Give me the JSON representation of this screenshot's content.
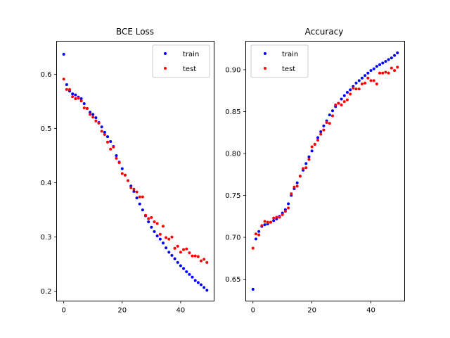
{
  "chart_data": [
    {
      "type": "scatter",
      "title": "BCE Loss",
      "xlabel": "",
      "ylabel": "",
      "xlim": [
        -2.45,
        51.45
      ],
      "ylim": [
        0.182,
        0.661
      ],
      "xticks": [
        0,
        20,
        40
      ],
      "xtick_labels": [
        "0",
        "20",
        "40"
      ],
      "yticks": [
        0.2,
        0.3,
        0.4,
        0.5,
        0.6
      ],
      "ytick_labels": [
        "0.2",
        "0.3",
        "0.4",
        "0.5",
        "0.6"
      ],
      "grid": false,
      "legend_position": "upper right",
      "x": [
        0,
        1,
        2,
        3,
        4,
        5,
        6,
        7,
        8,
        9,
        10,
        11,
        12,
        13,
        14,
        15,
        16,
        17,
        18,
        19,
        20,
        21,
        22,
        23,
        24,
        25,
        26,
        27,
        28,
        29,
        30,
        31,
        32,
        33,
        34,
        35,
        36,
        37,
        38,
        39,
        40,
        41,
        42,
        43,
        44,
        45,
        46,
        47,
        48,
        49
      ],
      "series": [
        {
          "name": "train",
          "color": "#0000ff",
          "values": [
            0.637,
            0.581,
            0.569,
            0.564,
            0.562,
            0.558,
            0.555,
            0.546,
            0.537,
            0.53,
            0.526,
            0.52,
            0.511,
            0.503,
            0.493,
            0.485,
            0.476,
            0.467,
            0.45,
            0.438,
            0.426,
            0.414,
            0.404,
            0.394,
            0.384,
            0.372,
            0.361,
            0.35,
            0.339,
            0.328,
            0.318,
            0.31,
            0.302,
            0.296,
            0.289,
            0.28,
            0.272,
            0.266,
            0.26,
            0.253,
            0.247,
            0.242,
            0.236,
            0.231,
            0.226,
            0.22,
            0.216,
            0.212,
            0.207,
            0.202
          ]
        },
        {
          "name": "test",
          "color": "#ff0000",
          "values": [
            0.591,
            0.572,
            0.572,
            0.559,
            0.555,
            0.556,
            0.551,
            0.538,
            0.537,
            0.526,
            0.521,
            0.514,
            0.51,
            0.495,
            0.489,
            0.475,
            0.462,
            0.466,
            0.445,
            0.437,
            0.417,
            0.414,
            0.404,
            0.391,
            0.388,
            0.383,
            0.374,
            0.374,
            0.34,
            0.334,
            0.336,
            0.328,
            0.325,
            0.305,
            0.32,
            0.299,
            0.296,
            0.3,
            0.279,
            0.283,
            0.272,
            0.277,
            0.278,
            0.271,
            0.265,
            0.265,
            0.264,
            0.256,
            0.259,
            0.253
          ]
        }
      ]
    },
    {
      "type": "scatter",
      "title": "Accuracy",
      "xlabel": "",
      "ylabel": "",
      "xlim": [
        -2.45,
        51.45
      ],
      "ylim": [
        0.624,
        0.934
      ],
      "xticks": [
        0,
        20,
        40
      ],
      "xtick_labels": [
        "0",
        "20",
        "40"
      ],
      "yticks": [
        0.65,
        0.7,
        0.75,
        0.8,
        0.85,
        0.9
      ],
      "ytick_labels": [
        "0.65",
        "0.70",
        "0.75",
        "0.80",
        "0.85",
        "0.90"
      ],
      "grid": false,
      "legend_position": "upper left",
      "x": [
        0,
        1,
        2,
        3,
        4,
        5,
        6,
        7,
        8,
        9,
        10,
        11,
        12,
        13,
        14,
        15,
        16,
        17,
        18,
        19,
        20,
        21,
        22,
        23,
        24,
        25,
        26,
        27,
        28,
        29,
        30,
        31,
        32,
        33,
        34,
        35,
        36,
        37,
        38,
        39,
        40,
        41,
        42,
        43,
        44,
        45,
        46,
        47,
        48,
        49
      ],
      "series": [
        {
          "name": "train",
          "color": "#0000ff",
          "values": [
            0.638,
            0.698,
            0.707,
            0.713,
            0.715,
            0.716,
            0.718,
            0.72,
            0.722,
            0.725,
            0.729,
            0.733,
            0.74,
            0.75,
            0.758,
            0.765,
            0.773,
            0.78,
            0.788,
            0.796,
            0.803,
            0.811,
            0.819,
            0.826,
            0.833,
            0.839,
            0.846,
            0.851,
            0.856,
            0.86,
            0.865,
            0.869,
            0.873,
            0.876,
            0.88,
            0.884,
            0.887,
            0.89,
            0.893,
            0.896,
            0.899,
            0.901,
            0.904,
            0.906,
            0.908,
            0.91,
            0.912,
            0.914,
            0.917,
            0.92
          ]
        },
        {
          "name": "test",
          "color": "#ff0000",
          "values": [
            0.687,
            0.704,
            0.703,
            0.714,
            0.719,
            0.718,
            0.718,
            0.723,
            0.724,
            0.724,
            0.727,
            0.731,
            0.735,
            0.752,
            0.76,
            0.761,
            0.773,
            0.782,
            0.783,
            0.793,
            0.808,
            0.811,
            0.816,
            0.823,
            0.828,
            0.837,
            0.836,
            0.845,
            0.858,
            0.86,
            0.858,
            0.862,
            0.864,
            0.871,
            0.878,
            0.877,
            0.877,
            0.883,
            0.884,
            0.89,
            0.887,
            0.887,
            0.883,
            0.896,
            0.896,
            0.897,
            0.896,
            0.902,
            0.899,
            0.903
          ]
        }
      ]
    }
  ]
}
